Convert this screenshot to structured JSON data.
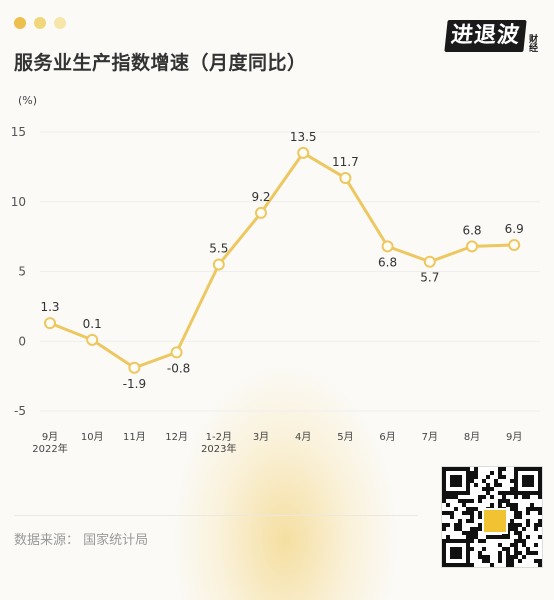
{
  "header": {
    "title": "服务业生产指数增速（月度同比）",
    "dot_colors": [
      "#ecbf4e",
      "#f2d67a",
      "#f7e6aa"
    ]
  },
  "brand": {
    "main": "进退波",
    "sub": "财经"
  },
  "source": {
    "text": "数据来源： 国家统计局"
  },
  "colors": {
    "line": "#edc75f",
    "point_fill": "#fffdf5",
    "grid": "#eeeeee"
  },
  "chart_data": {
    "type": "line",
    "title": "服务业生产指数增速（月度同比）",
    "unit": "(%)",
    "categories": [
      "9月",
      "10月",
      "11月",
      "12月",
      "1-2月",
      "3月",
      "4月",
      "5月",
      "6月",
      "7月",
      "8月",
      "9月"
    ],
    "category_sublabels": [
      "2022年",
      "",
      "",
      "",
      "2023年",
      "",
      "",
      "",
      "",
      "",
      "",
      ""
    ],
    "values": [
      1.3,
      0.1,
      -1.9,
      -0.8,
      5.5,
      9.2,
      13.5,
      11.7,
      6.8,
      5.7,
      6.8,
      6.9
    ],
    "labels": [
      "1.3",
      "0.1",
      "-1.9",
      "-0.8",
      "5.5",
      "9.2",
      "13.5",
      "11.7",
      "6.8",
      "5.7",
      "6.8",
      "6.9"
    ],
    "yticks": [
      15,
      10,
      5,
      0,
      -5
    ],
    "ylim": [
      -5,
      15
    ],
    "grid": true
  }
}
